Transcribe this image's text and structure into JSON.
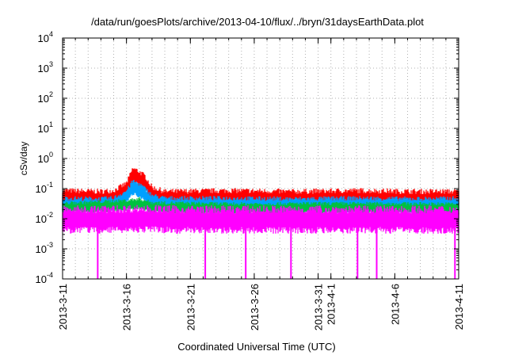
{
  "chart_data": {
    "type": "line",
    "title": "/data/run/goesPlots/archive/2013-04-10/flux/../bryn/31daysEarthData.plot",
    "xlabel": "Coordinated Universal Time (UTC)",
    "ylabel": "cSv/day",
    "yscale": "log",
    "ylim": [
      0.0001,
      10000
    ],
    "xlim": [
      "2013-03-11",
      "2013-04-11"
    ],
    "grid": true,
    "x_ticks": [
      {
        "date": "2013-03-11",
        "label": "2013-3-11"
      },
      {
        "date": "2013-03-16",
        "label": "2013-3-16"
      },
      {
        "date": "2013-03-21",
        "label": "2013-3-21"
      },
      {
        "date": "2013-03-26",
        "label": "2013-3-26"
      },
      {
        "date": "2013-03-31",
        "label": "2013-3-31"
      },
      {
        "date": "2013-04-01",
        "label": "2013-4-1"
      },
      {
        "date": "2013-04-06",
        "label": "2013-4-6"
      },
      {
        "date": "2013-04-11",
        "label": "2013-4-11"
      }
    ],
    "y_ticks": [
      {
        "value": 0.0001,
        "base": "10",
        "exp": "-4"
      },
      {
        "value": 0.001,
        "base": "10",
        "exp": "-3"
      },
      {
        "value": 0.01,
        "base": "10",
        "exp": "-2"
      },
      {
        "value": 0.1,
        "base": "10",
        "exp": "-1"
      },
      {
        "value": 1,
        "base": "10",
        "exp": "0"
      },
      {
        "value": 10,
        "base": "10",
        "exp": "1"
      },
      {
        "value": 100,
        "base": "10",
        "exp": "2"
      },
      {
        "value": 1000,
        "base": "10",
        "exp": "3"
      },
      {
        "value": 10000,
        "base": "10",
        "exp": "4"
      }
    ],
    "series": [
      {
        "color": "#ff0000",
        "x": [
          "2013-03-11",
          "2013-03-14",
          "2013-03-15",
          "2013-03-16",
          "2013-03-16T12:00",
          "2013-03-17",
          "2013-03-17T12:00",
          "2013-03-18",
          "2013-03-19",
          "2013-03-24",
          "2013-03-29",
          "2013-04-03",
          "2013-04-08",
          "2013-04-11"
        ],
        "y": [
          0.07,
          0.065,
          0.07,
          0.12,
          0.38,
          0.3,
          0.2,
          0.09,
          0.065,
          0.07,
          0.065,
          0.07,
          0.065,
          0.065
        ]
      },
      {
        "color": "#00a0ff",
        "x": [
          "2013-03-11",
          "2013-03-14",
          "2013-03-15",
          "2013-03-16",
          "2013-03-16T12:00",
          "2013-03-17",
          "2013-03-17T12:00",
          "2013-03-18",
          "2013-03-19",
          "2013-03-24",
          "2013-03-29",
          "2013-04-03",
          "2013-04-08",
          "2013-04-11"
        ],
        "y": [
          0.04,
          0.038,
          0.04,
          0.07,
          0.15,
          0.12,
          0.08,
          0.05,
          0.04,
          0.04,
          0.038,
          0.04,
          0.038,
          0.04
        ]
      },
      {
        "color": "#00c040",
        "x": [
          "2013-03-11",
          "2013-03-16",
          "2013-03-17",
          "2013-03-18",
          "2013-03-24",
          "2013-04-03",
          "2013-04-11"
        ],
        "y": [
          0.028,
          0.035,
          0.04,
          0.03,
          0.027,
          0.028,
          0.027
        ]
      },
      {
        "color": "#ff00ff",
        "x": [
          "2013-03-11",
          "2013-03-14",
          "2013-03-17",
          "2013-03-20",
          "2013-03-24",
          "2013-03-28",
          "2013-04-02",
          "2013-04-06",
          "2013-04-11"
        ],
        "y": [
          0.015,
          0.015,
          0.016,
          0.015,
          0.015,
          0.015,
          0.015,
          0.015,
          0.015
        ]
      }
    ],
    "dropouts": [
      "2013-03-13T18:00",
      "2013-03-22T04:00",
      "2013-03-25T08:00",
      "2013-03-28T21:00",
      "2013-04-03T02:00",
      "2013-04-04T14:00",
      "2013-04-10T17:00"
    ]
  }
}
